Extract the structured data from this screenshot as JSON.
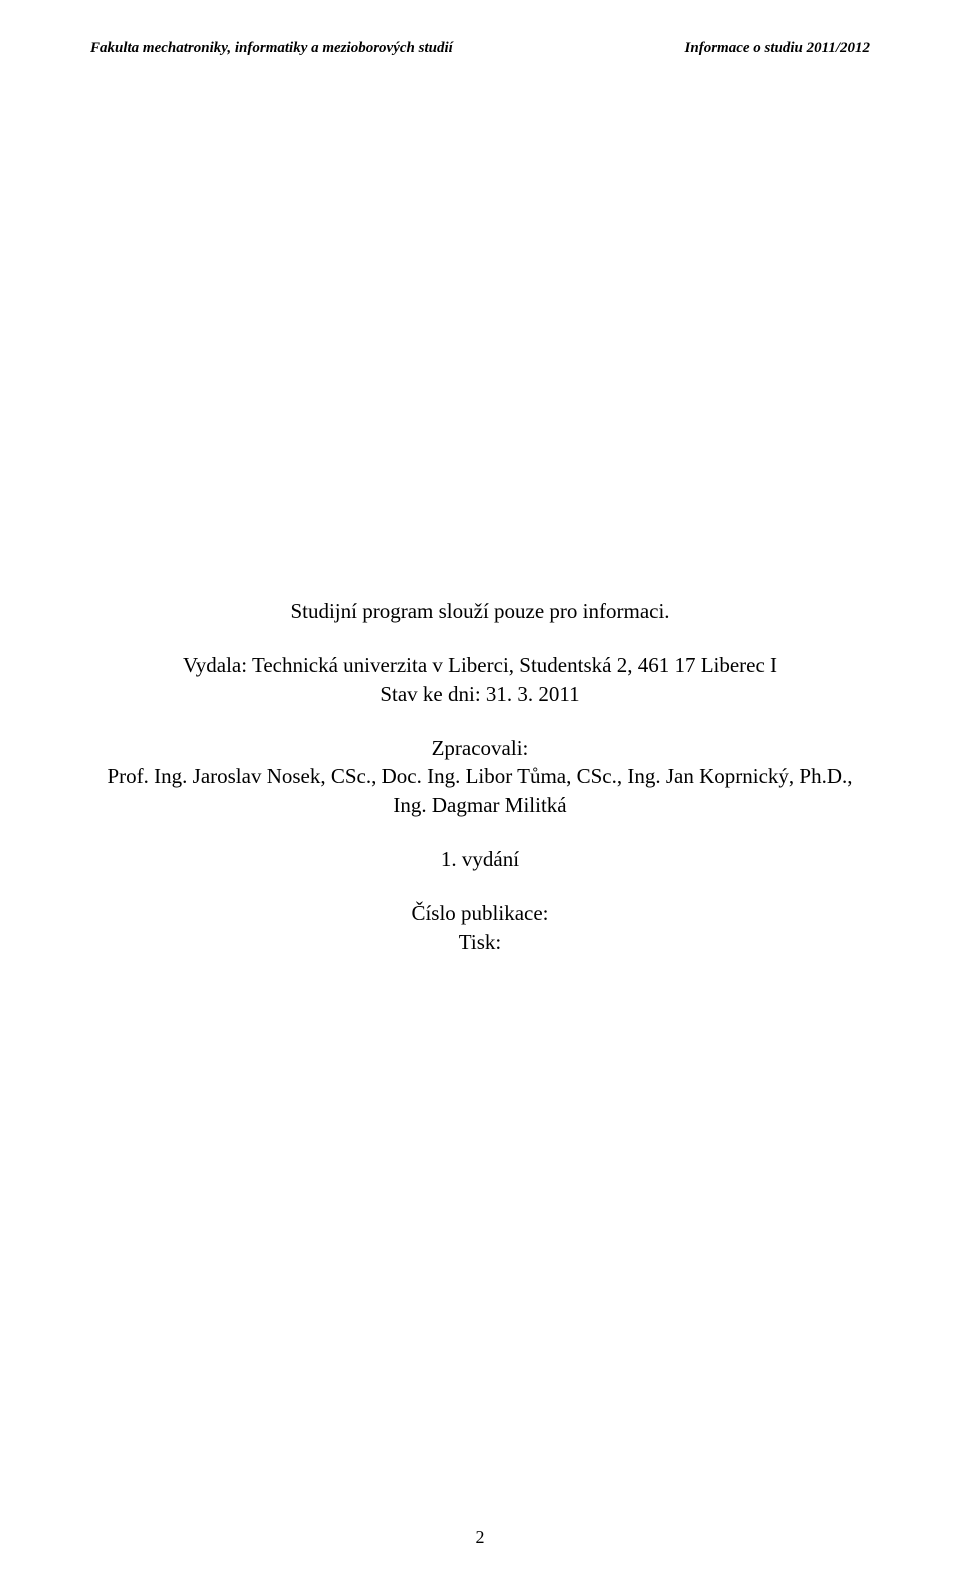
{
  "header": {
    "left": "Fakulta mechatroniky, informatiky a mezioborových studií",
    "right": "Informace o studiu 2011/2012"
  },
  "main": {
    "intro": "Studijní program slouží pouze pro informaci.",
    "publisher_line1": "Vydala: Technická univerzita v Liberci, Studentská 2, 461 17 Liberec I",
    "publisher_line2": "Stav ke dni: 31. 3. 2011",
    "authors_label": "Zpracovali:",
    "authors_line1": "Prof. Ing. Jaroslav Nosek, CSc., Doc. Ing. Libor Tůma, CSc., Ing. Jan Koprnický, Ph.D.,",
    "authors_line2": "Ing. Dagmar Militká",
    "edition": "1. vydání",
    "pubnum_label": "Číslo publikace:",
    "print_label": "Tisk:"
  },
  "page_number": "2"
}
